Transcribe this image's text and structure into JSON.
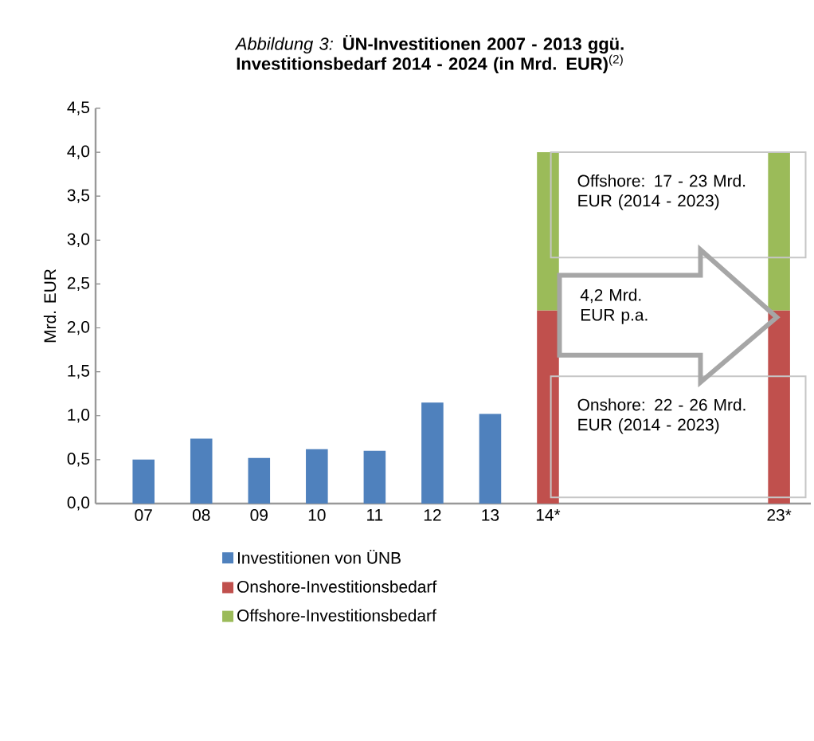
{
  "chart_data": {
    "type": "bar",
    "title": "*Abbildung 3:* **ÜN-Investitionen 2007 - 2013 ggü. Investitionsbedarf  2014 - 2024 (in Mrd. EUR)**$^{(2)}$",
    "ylabel": "Mrd. EUR",
    "categories": [
      "07",
      "08",
      "09",
      "10",
      "11",
      "12",
      "13",
      "14*",
      null,
      null,
      null,
      "23*"
    ],
    "series": [
      {
        "name": "Investitionen von ÜNB",
        "color": "#4f81bd",
        "values": [
          0.5,
          0.74,
          0.52,
          0.62,
          0.6,
          1.15,
          1.02,
          null,
          null,
          null,
          null,
          null
        ]
      },
      {
        "name": "Onshore-Investitionsbedarf",
        "color": "#c0504d",
        "values": [
          null,
          null,
          null,
          null,
          null,
          null,
          null,
          2.2,
          null,
          null,
          null,
          2.2
        ]
      },
      {
        "name": "Offshore-Investitionsbedarf",
        "color": "#9bbb59",
        "values": [
          null,
          null,
          null,
          null,
          null,
          null,
          null,
          1.8,
          null,
          null,
          null,
          1.8
        ]
      }
    ],
    "stacked": true,
    "ylim": [
      0,
      4.5
    ],
    "yticks": [
      {
        "value": 0,
        "label": "0,0"
      },
      {
        "value": 0.5,
        "label": "0,5"
      },
      {
        "value": 1,
        "label": "1,0"
      },
      {
        "value": 1.5,
        "label": "1,5"
      },
      {
        "value": 2,
        "label": "2,0"
      },
      {
        "value": 2.5,
        "label": "2,5"
      },
      {
        "value": 3,
        "label": "3,0"
      },
      {
        "value": 3.5,
        "label": "3,5"
      },
      {
        "value": 4,
        "label": "4,0"
      },
      {
        "value": 4.5,
        "label": "4,5"
      }
    ],
    "legend": "bottom",
    "annotations": [
      "Offshore: 17 - 23 Mrd. EUR (2014 - 2023)",
      "4,2 Mrd. EUR p.a.",
      "Onshore: 22 - 26 Mrd. EUR (2014 - 2023)"
    ]
  }
}
